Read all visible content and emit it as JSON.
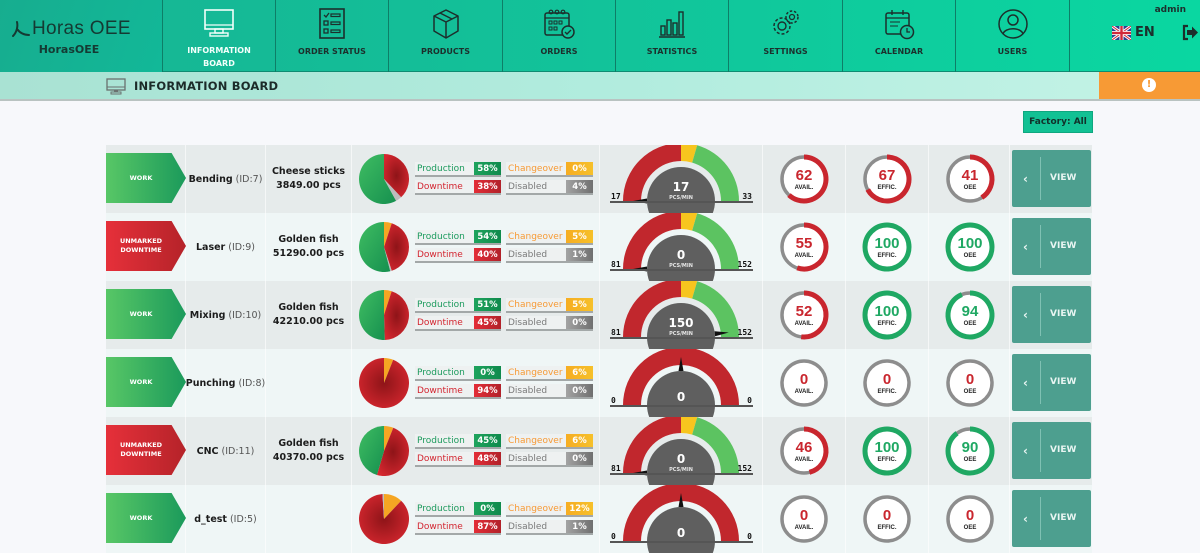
{
  "app": {
    "brand": "Horas OEE",
    "subtitle": "HorasOEE"
  },
  "nav": [
    {
      "label": "INFORMATION BOARD",
      "icon": "monitor-icon",
      "active": true
    },
    {
      "label": "ORDER STATUS",
      "icon": "checklist-icon",
      "active": false
    },
    {
      "label": "PRODUCTS",
      "icon": "box-icon",
      "active": false
    },
    {
      "label": "ORDERS",
      "icon": "calendar-check-icon",
      "active": false
    },
    {
      "label": "STATISTICS",
      "icon": "bar-chart-icon",
      "active": false
    },
    {
      "label": "SETTINGS",
      "icon": "gears-icon",
      "active": false
    },
    {
      "label": "CALENDAR",
      "icon": "calendar-clock-icon",
      "active": false
    },
    {
      "label": "USERS",
      "icon": "user-icon",
      "active": false
    }
  ],
  "user": {
    "name": "admin",
    "language": "EN"
  },
  "page": {
    "title": "INFORMATION BOARD",
    "alert_icon": "!"
  },
  "factory_filter": "Factory: All",
  "colors": {
    "accent": "#12c39a",
    "work": "#1b9a5b",
    "downtime": "#d32530",
    "changeover": "#f79a35",
    "disabled": "#7a7a7a",
    "view_button": "#4d9f8f"
  },
  "labels": {
    "production": "Production",
    "downtime": "Downtime",
    "changeover": "Changeover",
    "disabled": "Disabled",
    "pcs_min": "PCS/MIN",
    "avail": "AVAIL.",
    "effic": "EFFIC.",
    "oee": "OEE",
    "view": "VIEW",
    "view_chevron": "‹"
  },
  "machines": [
    {
      "status": "WORK",
      "status_type": "work",
      "name": "Bending",
      "id": "(ID:7)",
      "product": "Cheese sticks",
      "quantity": "3849.00 pcs",
      "production": "58%",
      "downtime": "38%",
      "changeover": "0%",
      "disabled": "4%",
      "pie": {
        "production": 58,
        "downtime": 38,
        "changeover": 0,
        "disabled": 4
      },
      "speed": {
        "value": "17",
        "min": "17",
        "max": "33",
        "show_unit": true,
        "colored": true,
        "needle": 0.0
      },
      "avail": "62",
      "effic": "67",
      "oee": "41",
      "avail_pct": 62,
      "effic_pct": 67,
      "oee_pct": 41
    },
    {
      "status": "UNMARKED DOWNTIME",
      "status_type": "down",
      "name": "Laser",
      "id": "(ID:9)",
      "product": "Golden fish",
      "quantity": "51290.00 pcs",
      "production": "54%",
      "downtime": "40%",
      "changeover": "5%",
      "disabled": "1%",
      "pie": {
        "production": 54,
        "downtime": 40,
        "changeover": 5,
        "disabled": 1
      },
      "speed": {
        "value": "0",
        "min": "81",
        "max": "152",
        "show_unit": true,
        "colored": true,
        "needle": 0.0
      },
      "avail": "55",
      "effic": "100",
      "oee": "100",
      "avail_pct": 55,
      "effic_pct": 100,
      "oee_pct": 100
    },
    {
      "status": "WORK",
      "status_type": "work",
      "name": "Mixing",
      "id": "(ID:10)",
      "product": "Golden fish",
      "quantity": "42210.00 pcs",
      "production": "51%",
      "downtime": "45%",
      "changeover": "5%",
      "disabled": "0%",
      "pie": {
        "production": 51,
        "downtime": 45,
        "changeover": 5,
        "disabled": 0
      },
      "speed": {
        "value": "150",
        "min": "81",
        "max": "152",
        "show_unit": true,
        "colored": true,
        "needle": 0.97
      },
      "avail": "52",
      "effic": "100",
      "oee": "94",
      "avail_pct": 52,
      "effic_pct": 100,
      "oee_pct": 94
    },
    {
      "status": "WORK",
      "status_type": "work",
      "name": "Punching",
      "id": "(ID:8)",
      "product": "",
      "quantity": "",
      "production": "0%",
      "downtime": "94%",
      "changeover": "6%",
      "disabled": "0%",
      "pie": {
        "production": 0,
        "downtime": 94,
        "changeover": 6,
        "disabled": 0
      },
      "speed": {
        "value": "0",
        "min": "0",
        "max": "0",
        "show_unit": false,
        "colored": false,
        "needle": 0.5
      },
      "avail": "0",
      "effic": "0",
      "oee": "0",
      "avail_pct": 0,
      "effic_pct": 0,
      "oee_pct": 0
    },
    {
      "status": "UNMARKED DOWNTIME",
      "status_type": "down",
      "name": "CNC",
      "id": "(ID:11)",
      "product": "Golden fish",
      "quantity": "40370.00 pcs",
      "production": "45%",
      "downtime": "48%",
      "changeover": "6%",
      "disabled": "0%",
      "pie": {
        "production": 45,
        "downtime": 48,
        "changeover": 6,
        "disabled": 0
      },
      "speed": {
        "value": "0",
        "min": "81",
        "max": "152",
        "show_unit": true,
        "colored": true,
        "needle": 0.0
      },
      "avail": "46",
      "effic": "100",
      "oee": "90",
      "avail_pct": 46,
      "effic_pct": 100,
      "oee_pct": 90
    },
    {
      "status": "WORK",
      "status_type": "work",
      "name": "d_test",
      "id": "(ID:5)",
      "product": "",
      "quantity": "",
      "production": "0%",
      "downtime": "87%",
      "changeover": "12%",
      "disabled": "1%",
      "pie": {
        "production": 0,
        "downtime": 87,
        "changeover": 12,
        "disabled": 1
      },
      "speed": {
        "value": "0",
        "min": "0",
        "max": "0",
        "show_unit": false,
        "colored": false,
        "needle": 0.5
      },
      "avail": "0",
      "effic": "0",
      "oee": "0",
      "avail_pct": 0,
      "effic_pct": 0,
      "oee_pct": 0
    }
  ]
}
